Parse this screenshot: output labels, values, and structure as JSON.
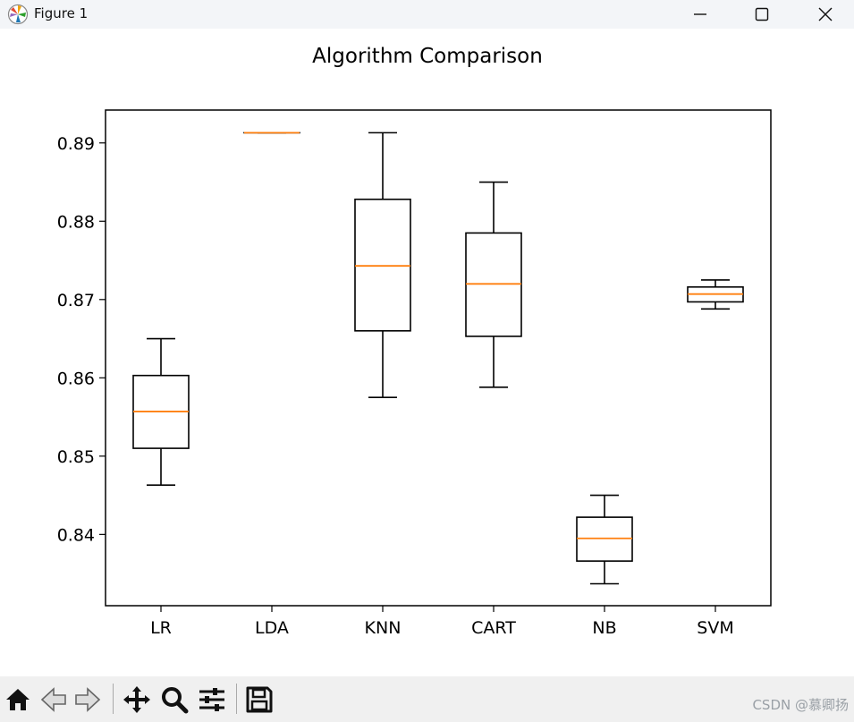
{
  "window": {
    "title": "Figure 1",
    "icons": [
      "matplotlib-icon",
      "minimize-icon",
      "maximize-icon",
      "close-icon"
    ]
  },
  "toolbar": {
    "tools": [
      "home-icon",
      "back-icon",
      "forward-icon",
      "pan-icon",
      "zoom-icon",
      "configure-subplots-icon",
      "save-icon"
    ]
  },
  "watermark": "CSDN @慕卿扬",
  "chart_data": {
    "type": "box",
    "title": "Algorithm Comparison",
    "xlabel": "",
    "ylabel": "",
    "categories": [
      "LR",
      "LDA",
      "KNN",
      "CART",
      "NB",
      "SVM"
    ],
    "boxes": [
      {
        "whislo": 0.8463,
        "q1": 0.851,
        "med": 0.8557,
        "q3": 0.8603,
        "whishi": 0.865
      },
      {
        "whislo": 0.8913,
        "q1": 0.8913,
        "med": 0.8913,
        "q3": 0.8913,
        "whishi": 0.8913
      },
      {
        "whislo": 0.8575,
        "q1": 0.866,
        "med": 0.8743,
        "q3": 0.8828,
        "whishi": 0.8913
      },
      {
        "whislo": 0.8588,
        "q1": 0.8653,
        "med": 0.872,
        "q3": 0.8785,
        "whishi": 0.885
      },
      {
        "whislo": 0.8337,
        "q1": 0.8366,
        "med": 0.8395,
        "q3": 0.8422,
        "whishi": 0.845
      },
      {
        "whislo": 0.8688,
        "q1": 0.8697,
        "med": 0.8707,
        "q3": 0.8716,
        "whishi": 0.8725
      }
    ],
    "yticks": [
      "0.84",
      "0.85",
      "0.86",
      "0.87",
      "0.88",
      "0.89"
    ],
    "ylim": [
      0.8309,
      0.8942
    ],
    "colors": {
      "box": "#000000",
      "median": "#ff7f0e"
    },
    "grid": false
  }
}
